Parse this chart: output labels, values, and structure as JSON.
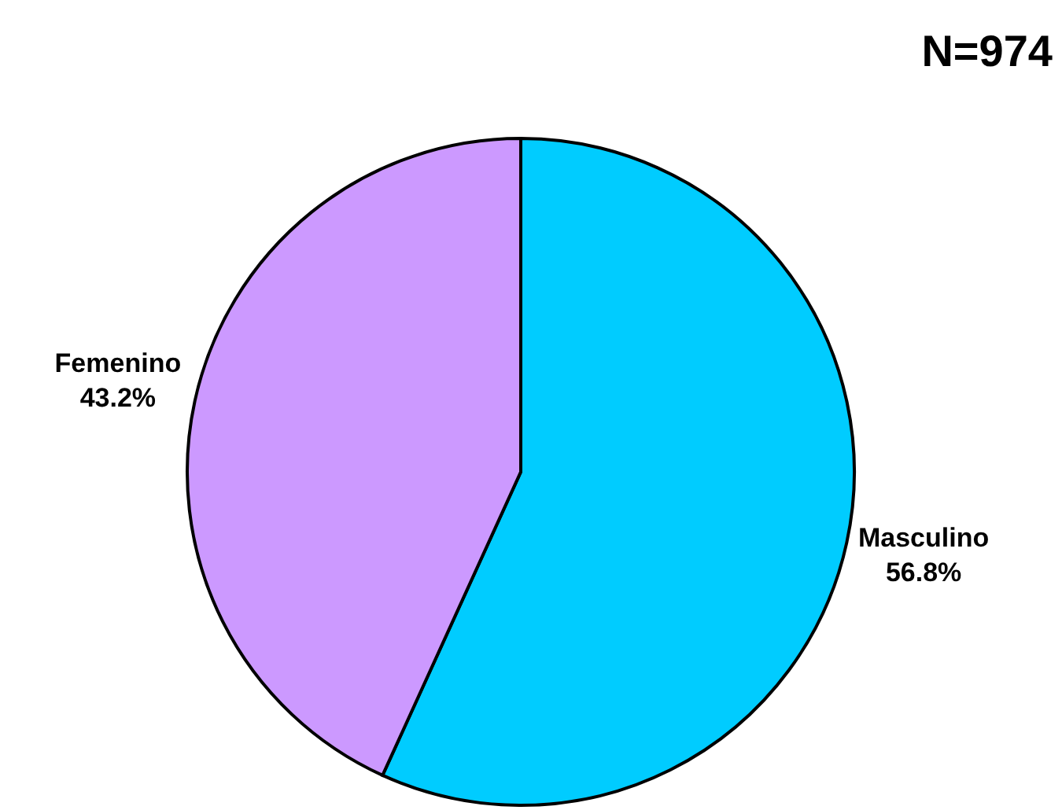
{
  "chart_data": {
    "type": "pie",
    "title": "N=974",
    "categories": [
      "Masculino",
      "Femenino"
    ],
    "values": [
      56.8,
      43.2
    ],
    "colors": [
      "#00ccff",
      "#cc99ff"
    ],
    "value_labels": [
      "56.8%",
      "43.2%"
    ],
    "legend": false
  }
}
